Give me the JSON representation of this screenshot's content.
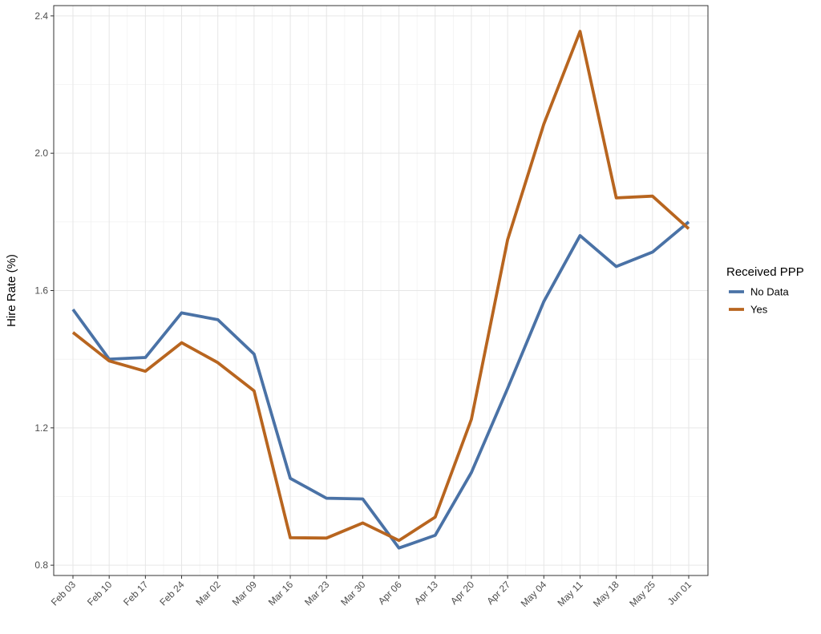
{
  "chart_data": {
    "type": "line",
    "title": "",
    "xlabel": "",
    "ylabel": "Hire Rate (%)",
    "categories": [
      "Feb 03",
      "Feb 10",
      "Feb 17",
      "Feb 24",
      "Mar 02",
      "Mar 09",
      "Mar 16",
      "Mar 23",
      "Mar 30",
      "Apr 06",
      "Apr 13",
      "Apr 20",
      "Apr 27",
      "May 04",
      "May 11",
      "May 18",
      "May 25",
      "Jun 01"
    ],
    "yticks": [
      "0.8",
      "1.2",
      "1.6",
      "2.0",
      "2.4"
    ],
    "ylim": [
      0.77,
      2.43
    ],
    "grid": true,
    "legend": {
      "title": "Received PPP",
      "placement": "right"
    },
    "series": [
      {
        "name": "No Data",
        "color": "#4a72a6",
        "values": [
          1.545,
          1.4,
          1.405,
          1.535,
          1.515,
          1.415,
          1.053,
          0.995,
          0.993,
          0.85,
          0.887,
          1.07,
          1.315,
          1.568,
          1.76,
          1.67,
          1.712,
          1.8
        ]
      },
      {
        "name": "Yes",
        "color": "#b8651f",
        "values": [
          1.478,
          1.395,
          1.365,
          1.448,
          1.39,
          1.308,
          0.88,
          0.879,
          0.923,
          0.872,
          0.94,
          1.225,
          1.748,
          2.085,
          2.355,
          1.87,
          1.875,
          1.78
        ]
      }
    ]
  }
}
